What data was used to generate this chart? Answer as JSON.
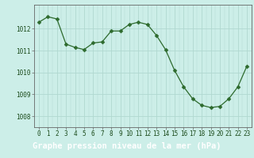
{
  "x": [
    0,
    1,
    2,
    3,
    4,
    5,
    6,
    7,
    8,
    9,
    10,
    11,
    12,
    13,
    14,
    15,
    16,
    17,
    18,
    19,
    20,
    21,
    22,
    23
  ],
  "y": [
    1012.3,
    1012.55,
    1012.45,
    1011.3,
    1011.15,
    1011.05,
    1011.35,
    1011.4,
    1011.9,
    1011.9,
    1012.2,
    1012.3,
    1012.2,
    1011.7,
    1011.05,
    1010.1,
    1009.35,
    1008.8,
    1008.5,
    1008.4,
    1008.45,
    1008.8,
    1009.35,
    1010.3
  ],
  "line_color": "#2d6a2d",
  "marker": "D",
  "marker_size": 2.5,
  "bg_color": "#cceee8",
  "grid_color": "#b0d8d0",
  "xlabel": "Graphe pression niveau de la mer (hPa)",
  "xlabel_color": "#1a4a1a",
  "xlabel_fontsize": 7.5,
  "tick_color": "#1a4a1a",
  "tick_fontsize": 5.5,
  "ylim": [
    1007.5,
    1013.1
  ],
  "yticks": [
    1008,
    1009,
    1010,
    1011,
    1012
  ],
  "xticks": [
    0,
    1,
    2,
    3,
    4,
    5,
    6,
    7,
    8,
    9,
    10,
    11,
    12,
    13,
    14,
    15,
    16,
    17,
    18,
    19,
    20,
    21,
    22,
    23
  ],
  "axis_color": "#666666",
  "bottom_bar_color": "#3a7a5a",
  "bottom_bar_text_color": "#1a3a1a"
}
